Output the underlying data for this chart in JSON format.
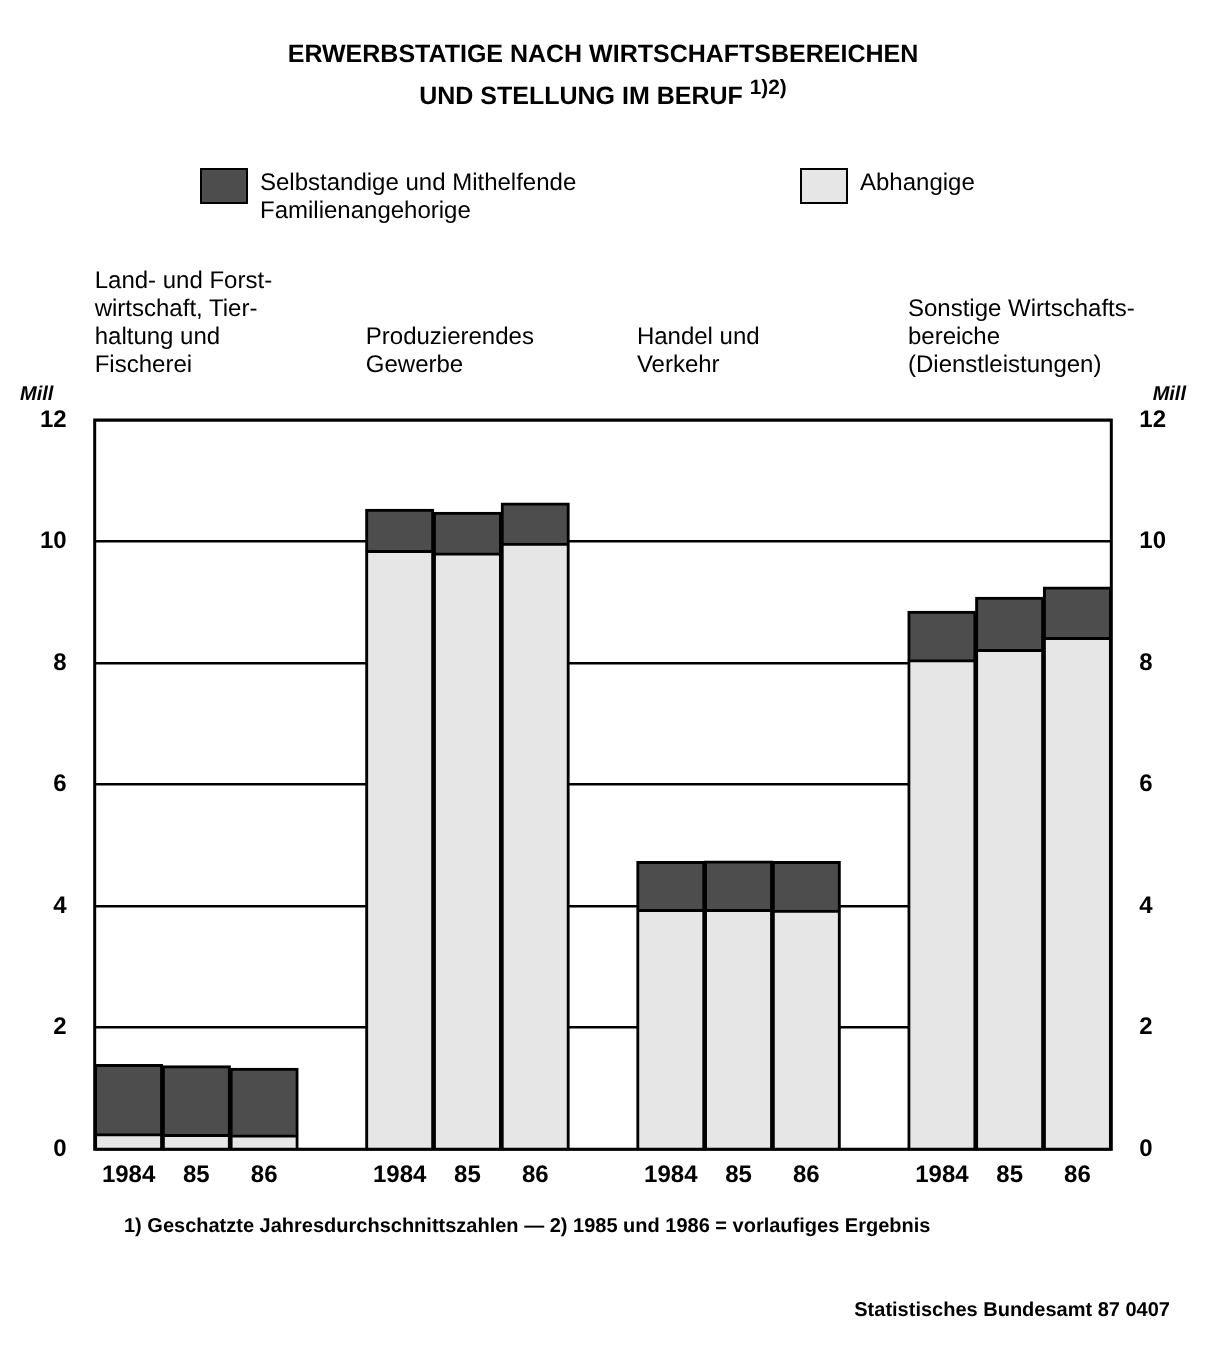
{
  "chart_data": {
    "type": "bar",
    "title": "ERWERBSTATIGE NACH WIRTSCHAFTSBEREICHEN UND STELLUNG IM BERUF $^{1)2)}$",
    "categories": [
      "1984",
      "85",
      "86",
      null,
      "1984",
      "85",
      "86",
      null,
      "1984",
      "85",
      "86",
      null,
      "1984",
      "85",
      "86"
    ],
    "stacked": true,
    "series": [
      {
        "name": "Abhangige",
        "color": "#e6e6e6",
        "values": [
          0.25,
          0.24,
          0.23,
          null,
          9.85,
          9.81,
          9.97,
          null,
          3.94,
          3.94,
          3.93,
          null,
          8.05,
          8.22,
          8.42
        ]
      },
      {
        "name": "Selbstandige und Mithelfende Familienangehorige",
        "color": "#4d4d4d",
        "values": [
          1.14,
          1.13,
          1.1,
          null,
          0.68,
          0.67,
          0.66,
          null,
          0.79,
          0.8,
          0.8,
          null,
          0.8,
          0.86,
          0.83
        ]
      }
    ],
    "ylabel": "Mill",
    "y2label": "Mill",
    "ylim": [
      0,
      12
    ],
    "yticks": [
      0,
      2,
      4,
      6,
      8,
      10,
      12
    ],
    "y2lim": [
      0,
      12
    ],
    "y2ticks": [
      0,
      2,
      4,
      6,
      8,
      10,
      12
    ],
    "grid": "y",
    "legend": "top",
    "annotations": [
      "Land- und Forst-\nwirtschaft, Tier-\nhaltung und\nFischerei",
      "Produzierendes\nGewerbe",
      "Handel und\nVerkehr",
      "Sonstige Wirtschafts-\nbereiche\n(Dienstleistungen)",
      "1) Geschatzte Jahresdurchschnittszahlen — 2) 1985 und 1986 = vorlaufiges Ergebnis",
      "Statistisches Bundesamt 87 0407"
    ]
  }
}
